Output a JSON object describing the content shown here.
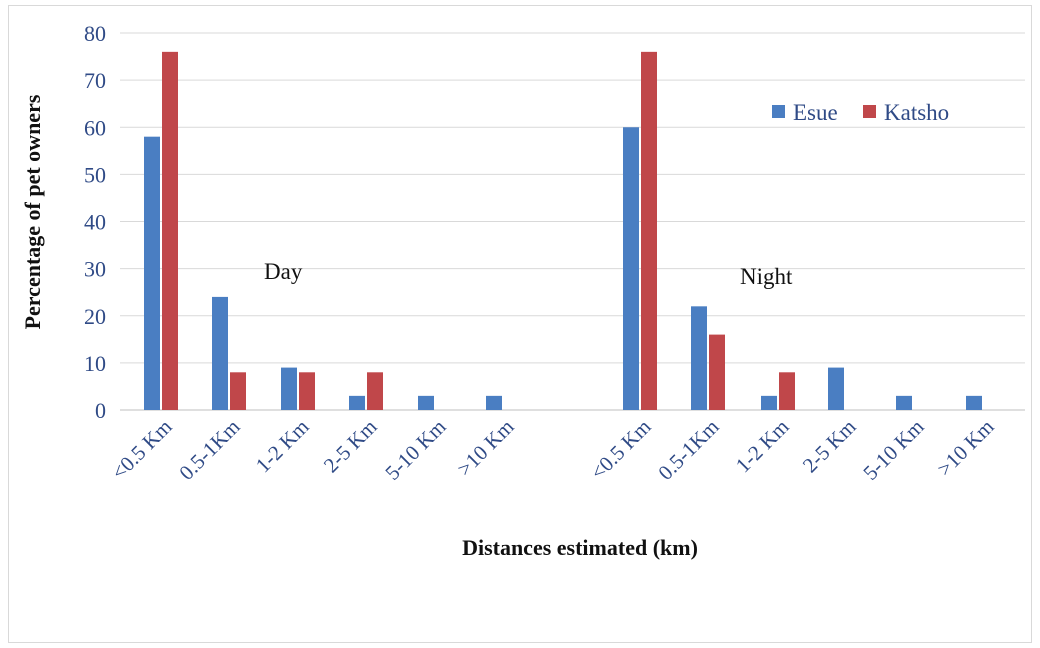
{
  "chart_data": {
    "type": "bar",
    "categories": [
      "<0.5 Km",
      "0.5-1Km",
      "1-2 Km",
      "2-5 Km",
      "5-10 Km",
      ">10 Km",
      "<0.5 Km",
      "0.5-1Km",
      "1-2 Km",
      "2-5 Km",
      "5-10 Km",
      ">10 Km"
    ],
    "series": [
      {
        "name": "Esue",
        "color": "#4a7ec2",
        "values": [
          58,
          24,
          9,
          3,
          3,
          3,
          60,
          22,
          3,
          9,
          3,
          3
        ]
      },
      {
        "name": "Katsho",
        "color": "#c0474a",
        "values": [
          76,
          8,
          8,
          8,
          null,
          null,
          76,
          16,
          8,
          null,
          null,
          null
        ]
      }
    ],
    "xlabel": "Distances estimated (km)",
    "ylabel": "Percentage of pet owners",
    "ylim": [
      0,
      80
    ],
    "yticks": [
      "0",
      "10",
      "20",
      "30",
      "40",
      "50",
      "60",
      "70",
      "80"
    ],
    "grid": true,
    "legend_position": "top-right",
    "annotations": [
      "Day",
      "Night"
    ]
  }
}
